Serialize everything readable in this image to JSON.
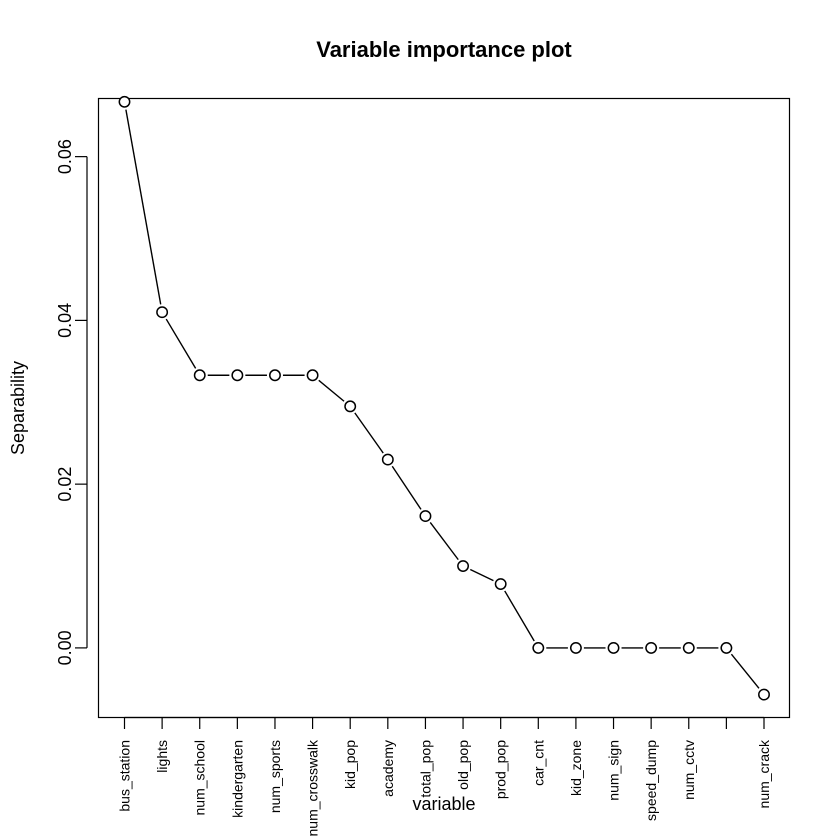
{
  "chart_data": {
    "type": "line",
    "title": "Variable importance plot",
    "xlabel": "variable",
    "ylabel": "Separability",
    "ylim": [
      -0.0085,
      0.0671
    ],
    "y_ticks": [
      "0.00",
      "0.02",
      "0.04",
      "0.06"
    ],
    "y_tick_values": [
      0.0,
      0.02,
      0.04,
      0.06
    ],
    "grid": false,
    "legend": "none",
    "categories": [
      "bus_station",
      "lights",
      "num_school",
      "kindergarten",
      "num_sports",
      "num_crosswalk",
      "kid_pop",
      "academy",
      "total_pop",
      "old_pop",
      "prod_pop",
      "car_cnt",
      "kid_zone",
      "num_sign",
      "speed_dump",
      "num_cctv",
      "",
      "num_crack"
    ],
    "series": [
      {
        "values": [
          0.0667,
          0.041,
          0.0333,
          0.0333,
          0.0333,
          0.0333,
          0.0295,
          0.023,
          0.0161,
          0.01,
          0.0078,
          0.0,
          0.0,
          0.0,
          0.0,
          0.0,
          0.0,
          -0.0057
        ]
      }
    ],
    "colors": {
      "line": "#000000",
      "marker_fill": "#ffffff",
      "axis": "#000000"
    }
  }
}
